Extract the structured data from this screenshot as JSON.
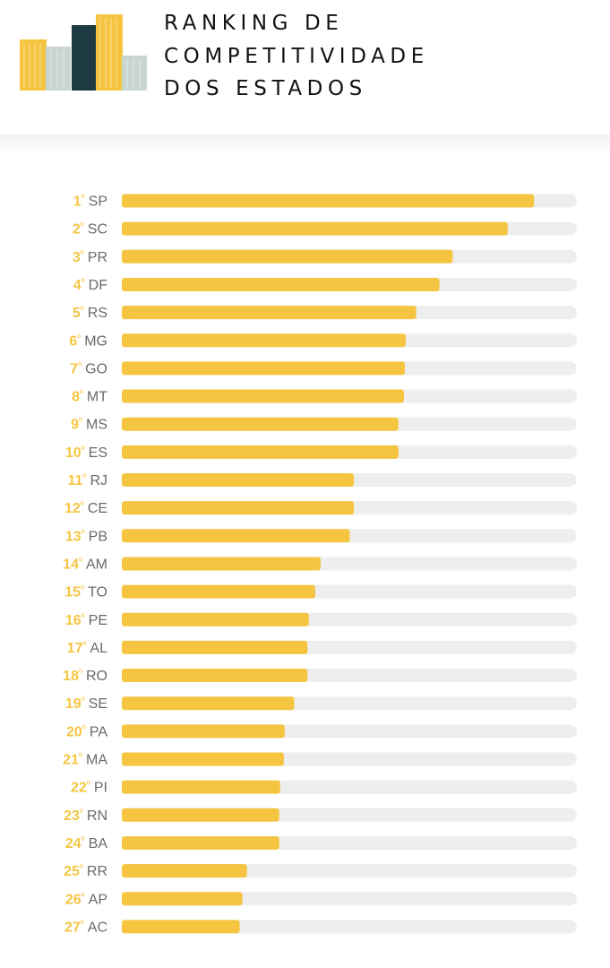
{
  "title_lines": [
    "RANKING DE",
    "COMPETITIVIDADE",
    "DOS ESTADOS"
  ],
  "colors": {
    "accent": "#f5c542",
    "track": "#eeeeee",
    "label_gray": "#6a6a6a",
    "logo_dark": "#1d3a40",
    "logo_light": "#c9d6d0"
  },
  "chart_data": {
    "type": "bar",
    "orientation": "horizontal",
    "title": "RANKING DE COMPETITIVIDADE DOS ESTADOS",
    "xlabel": "",
    "ylabel": "",
    "xlim": [
      0,
      100
    ],
    "grid": false,
    "rank_suffix": "º",
    "ranks": [
      "1",
      "2",
      "3",
      "4",
      "5",
      "6",
      "7",
      "8",
      "9",
      "10",
      "11",
      "12",
      "13",
      "14",
      "15",
      "16",
      "17",
      "18",
      "19",
      "20",
      "21",
      "22",
      "23",
      "24",
      "25",
      "26",
      "27"
    ],
    "categories": [
      "SP",
      "SC",
      "PR",
      "DF",
      "RS",
      "MG",
      "GO",
      "MT",
      "MS",
      "ES",
      "RJ",
      "CE",
      "PB",
      "AM",
      "TO",
      "PE",
      "AL",
      "RO",
      "SE",
      "PA",
      "MA",
      "PI",
      "RN",
      "BA",
      "RR",
      "AP",
      "AC"
    ],
    "values": [
      90.6,
      84.8,
      72.7,
      69.8,
      64.7,
      62.4,
      62.2,
      62.0,
      60.8,
      60.8,
      51.0,
      51.0,
      50.1,
      43.7,
      42.5,
      41.1,
      40.8,
      40.8,
      37.9,
      35.8,
      35.6,
      34.8,
      34.6,
      34.6,
      27.5,
      26.5,
      25.9
    ]
  }
}
